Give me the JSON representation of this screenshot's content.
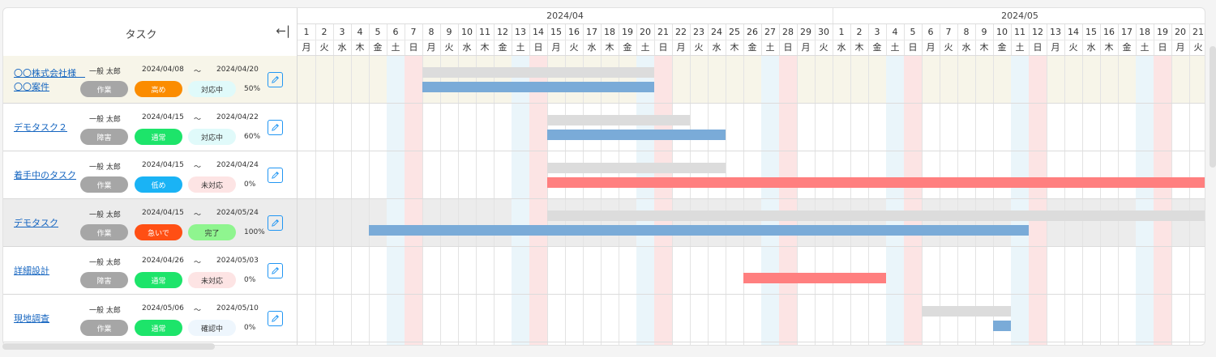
{
  "header": {
    "task_label": "タスク",
    "collapse_label": "←|"
  },
  "timeline": {
    "months": [
      "2024/04",
      "2024/05"
    ],
    "start_date": "2024/04/01",
    "day_count": 51
  },
  "weekdays": [
    "月",
    "火",
    "水",
    "木",
    "金",
    "土",
    "日"
  ],
  "colors": {
    "grey_bar": "#dcdcdc",
    "blue_bar": "#7aabd8",
    "red_bar": "#ff7f7f",
    "saturday_col": "#eaf5fa",
    "sunday_col": "#fce4e4",
    "row_highlight_yellow": "#f7f5e9",
    "row_highlight_grey": "#ececec"
  },
  "tasks": [
    {
      "name": "〇〇株式会社様　〇〇案件",
      "assignee": "一般 太郎",
      "start": "2024/04/08",
      "tilde": "～",
      "end": "2024/04/20",
      "type": "作業",
      "priority": "高め",
      "priority_color": "#fb8c00",
      "status": "対応中",
      "status_bg": "#e0fafa",
      "percent": "50%",
      "plan": [
        8,
        20
      ],
      "actual": [
        8,
        20
      ],
      "actual_color": "blue",
      "highlight": "yellow"
    },
    {
      "name": "デモタスク２",
      "assignee": "一般 太郎",
      "start": "2024/04/15",
      "tilde": "～",
      "end": "2024/04/22",
      "type": "障害",
      "priority": "通常",
      "priority_color": "#1de46a",
      "status": "対応中",
      "status_bg": "#e0fafa",
      "percent": "60%",
      "plan": [
        15,
        22
      ],
      "actual": [
        15,
        24
      ],
      "actual_color": "blue",
      "highlight": "none"
    },
    {
      "name": "着手中のタスク",
      "assignee": "一般 太郎",
      "start": "2024/04/15",
      "tilde": "～",
      "end": "2024/04/24",
      "type": "作業",
      "priority": "低め",
      "priority_color": "#1ab3f5",
      "status": "未対応",
      "status_bg": "#fde4e4",
      "percent": "0%",
      "plan": [
        15,
        24
      ],
      "actual": [
        15,
        51
      ],
      "actual_color": "red",
      "highlight": "none"
    },
    {
      "name": "デモタスク",
      "assignee": "一般 太郎",
      "start": "2024/04/15",
      "tilde": "～",
      "end": "2024/05/24",
      "type": "作業",
      "priority": "急いで",
      "priority_color": "#ff4f14",
      "status": "完了",
      "status_bg": "#8ff58f",
      "percent": "100%",
      "plan": [
        15,
        51
      ],
      "actual": [
        5,
        41
      ],
      "actual_color": "blue",
      "highlight": "grey"
    },
    {
      "name": "詳細設計",
      "assignee": "一般 太郎",
      "start": "2024/04/26",
      "tilde": "～",
      "end": "2024/05/03",
      "type": "障害",
      "priority": "通常",
      "priority_color": "#1de46a",
      "status": "未対応",
      "status_bg": "#fde4e4",
      "percent": "0%",
      "plan": null,
      "actual": [
        26,
        33
      ],
      "actual_color": "red",
      "highlight": "none"
    },
    {
      "name": "現地調査",
      "assignee": "一般 太郎",
      "start": "2024/05/06",
      "tilde": "～",
      "end": "2024/05/10",
      "type": "作業",
      "priority": "通常",
      "priority_color": "#1de46a",
      "status": "確認中",
      "status_bg": "#eef6fd",
      "percent": "0%",
      "plan": [
        36,
        40
      ],
      "actual": [
        40,
        40
      ],
      "actual_color": "blue",
      "highlight": "none"
    }
  ]
}
